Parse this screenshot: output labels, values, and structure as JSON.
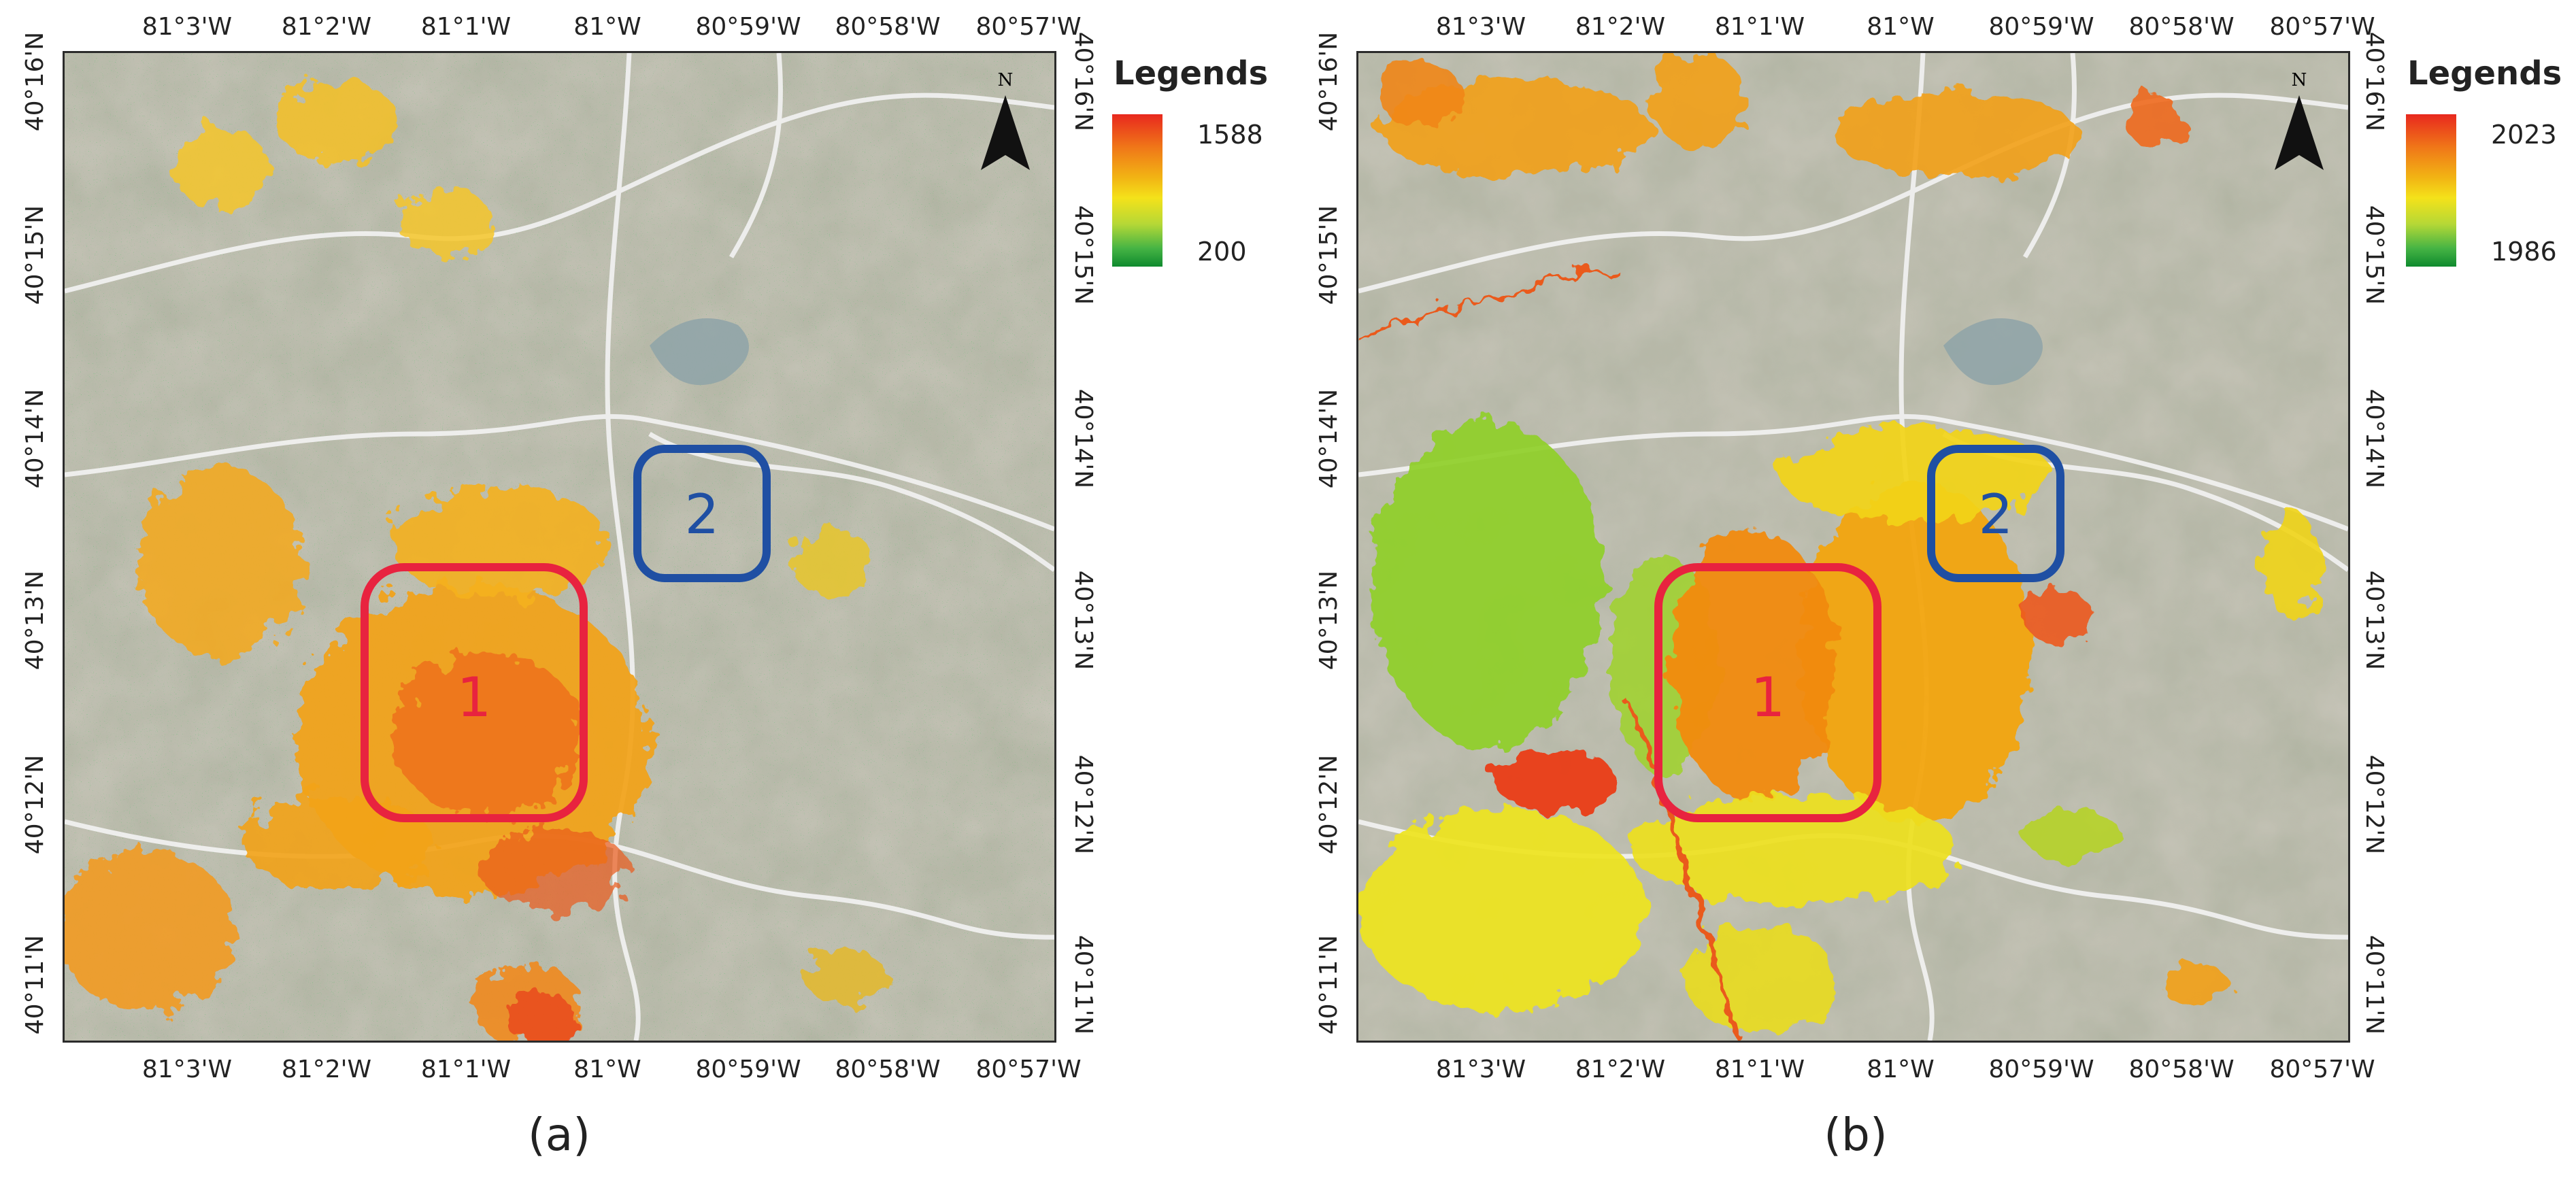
{
  "longitude_labels": [
    "81°3'W",
    "81°2'W",
    "81°1'W",
    "81°W",
    "80°59'W",
    "80°58'W",
    "80°57'W"
  ],
  "latitude_labels": [
    "40°16'N",
    "40°15'N",
    "40°14'N",
    "40°13'N",
    "40°12'N",
    "40°11'N"
  ],
  "north_arrow": {
    "label": "N",
    "icon": "north-arrow-icon"
  },
  "region_labels": {
    "region1": "1",
    "region2": "2"
  },
  "colors": {
    "region1_box": "#e8233f",
    "region2_box": "#1f4fa3",
    "ramp_high": "#e8281e",
    "ramp_mid": "#f4e21a",
    "ramp_low": "#0f8a2e"
  },
  "panels": [
    {
      "caption": "(a)",
      "legend_title": "Legends",
      "legend_max": "1588",
      "legend_min": "200"
    },
    {
      "caption": "(b)",
      "legend_title": "Legends",
      "legend_max": "2023",
      "legend_min": "1986"
    }
  ]
}
